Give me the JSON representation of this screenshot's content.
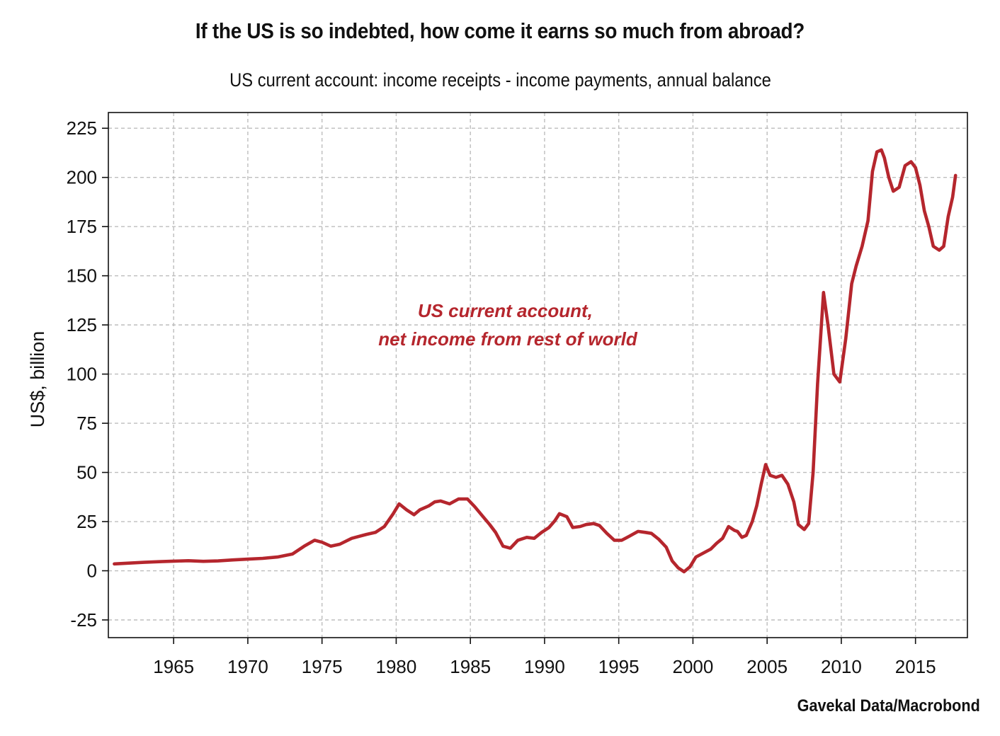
{
  "chart_data": {
    "type": "line",
    "title": "If the US is so indebted, how come it earns so much from abroad?",
    "subtitle": "US current account: income receipts - income payments, annual balance",
    "xlabel": "",
    "ylabel": "US$, billion",
    "xlim": [
      1960.6,
      2018.5
    ],
    "ylim": [
      -34,
      233
    ],
    "x_ticks": [
      1965,
      1970,
      1975,
      1980,
      1985,
      1990,
      1995,
      2000,
      2005,
      2010,
      2015
    ],
    "y_ticks": [
      -25,
      0,
      25,
      50,
      75,
      100,
      125,
      150,
      175,
      200,
      225
    ],
    "grid": true,
    "legend": "none",
    "series_color": "#B5262D",
    "annotation": [
      "US current account,",
      "net income from rest of world"
    ],
    "series": [
      {
        "name": "US current account, net income from rest of world",
        "points": [
          [
            1961.0,
            3.5
          ],
          [
            1962.0,
            3.9
          ],
          [
            1963.0,
            4.3
          ],
          [
            1964.0,
            4.6
          ],
          [
            1965.0,
            4.9
          ],
          [
            1966.0,
            5.1
          ],
          [
            1967.0,
            4.8
          ],
          [
            1968.0,
            5.0
          ],
          [
            1969.0,
            5.5
          ],
          [
            1970.0,
            5.9
          ],
          [
            1971.0,
            6.3
          ],
          [
            1972.0,
            7.0
          ],
          [
            1973.0,
            8.5
          ],
          [
            1973.8,
            12.5
          ],
          [
            1974.5,
            15.5
          ],
          [
            1975.0,
            14.5
          ],
          [
            1975.6,
            12.5
          ],
          [
            1976.2,
            13.5
          ],
          [
            1977.0,
            16.5
          ],
          [
            1978.0,
            18.5
          ],
          [
            1978.6,
            19.5
          ],
          [
            1979.2,
            22.5
          ],
          [
            1979.8,
            29.0
          ],
          [
            1980.2,
            34.0
          ],
          [
            1980.7,
            31.0
          ],
          [
            1981.2,
            28.5
          ],
          [
            1981.6,
            31.0
          ],
          [
            1982.2,
            33.0
          ],
          [
            1982.6,
            35.0
          ],
          [
            1983.0,
            35.5
          ],
          [
            1983.6,
            34.0
          ],
          [
            1984.2,
            36.5
          ],
          [
            1984.8,
            36.5
          ],
          [
            1985.3,
            32.5
          ],
          [
            1985.8,
            28.0
          ],
          [
            1986.3,
            23.5
          ],
          [
            1986.7,
            19.5
          ],
          [
            1987.2,
            12.5
          ],
          [
            1987.7,
            11.5
          ],
          [
            1988.2,
            15.5
          ],
          [
            1988.8,
            17.0
          ],
          [
            1989.3,
            16.5
          ],
          [
            1989.8,
            19.5
          ],
          [
            1990.3,
            22.0
          ],
          [
            1990.7,
            25.5
          ],
          [
            1991.0,
            29.0
          ],
          [
            1991.5,
            27.5
          ],
          [
            1991.9,
            22.0
          ],
          [
            1992.4,
            22.5
          ],
          [
            1992.8,
            23.5
          ],
          [
            1993.3,
            24.0
          ],
          [
            1993.7,
            23.0
          ],
          [
            1994.2,
            19.0
          ],
          [
            1994.7,
            15.5
          ],
          [
            1995.2,
            15.5
          ],
          [
            1995.7,
            17.5
          ],
          [
            1996.3,
            20.0
          ],
          [
            1996.8,
            19.5
          ],
          [
            1997.2,
            19.0
          ],
          [
            1997.7,
            16.0
          ],
          [
            1998.2,
            12.0
          ],
          [
            1998.6,
            5.0
          ],
          [
            1999.0,
            1.5
          ],
          [
            1999.4,
            -0.5
          ],
          [
            1999.8,
            2.0
          ],
          [
            2000.2,
            7.0
          ],
          [
            2000.7,
            9.0
          ],
          [
            2001.2,
            11.0
          ],
          [
            2001.6,
            14.0
          ],
          [
            2002.0,
            16.5
          ],
          [
            2002.4,
            22.5
          ],
          [
            2002.8,
            20.5
          ],
          [
            2003.0,
            20.0
          ],
          [
            2003.3,
            17.0
          ],
          [
            2003.6,
            18.0
          ],
          [
            2004.0,
            25.0
          ],
          [
            2004.3,
            33.0
          ],
          [
            2004.6,
            44.0
          ],
          [
            2004.9,
            54.0
          ],
          [
            2005.2,
            48.5
          ],
          [
            2005.6,
            47.5
          ],
          [
            2006.0,
            48.5
          ],
          [
            2006.4,
            44.0
          ],
          [
            2006.8,
            35.0
          ],
          [
            2007.1,
            23.5
          ],
          [
            2007.5,
            21.0
          ],
          [
            2007.8,
            24.0
          ],
          [
            2008.1,
            50.0
          ],
          [
            2008.4,
            95.0
          ],
          [
            2008.8,
            141.5
          ],
          [
            2009.1,
            125.0
          ],
          [
            2009.5,
            100.0
          ],
          [
            2009.9,
            96.0
          ],
          [
            2010.3,
            118.0
          ],
          [
            2010.7,
            146.0
          ],
          [
            2011.0,
            155.0
          ],
          [
            2011.4,
            165.0
          ],
          [
            2011.8,
            178.0
          ],
          [
            2012.1,
            203.0
          ],
          [
            2012.4,
            213.0
          ],
          [
            2012.7,
            214.0
          ],
          [
            2012.9,
            210.0
          ],
          [
            2013.2,
            200.0
          ],
          [
            2013.5,
            193.0
          ],
          [
            2013.9,
            195.0
          ],
          [
            2014.3,
            206.0
          ],
          [
            2014.7,
            208.0
          ],
          [
            2015.0,
            205.0
          ],
          [
            2015.3,
            196.0
          ],
          [
            2015.6,
            183.0
          ],
          [
            2015.9,
            175.0
          ],
          [
            2016.2,
            165.0
          ],
          [
            2016.6,
            163.0
          ],
          [
            2016.9,
            165.0
          ],
          [
            2017.2,
            180.0
          ],
          [
            2017.5,
            190.0
          ],
          [
            2017.7,
            201.0
          ]
        ]
      }
    ]
  },
  "source": "Gavekal Data/Macrobond"
}
